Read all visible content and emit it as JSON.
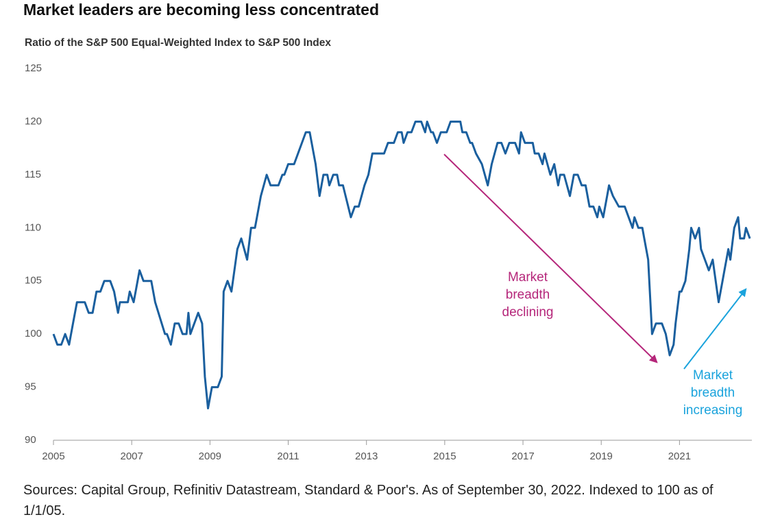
{
  "chart_data": {
    "type": "line",
    "title": "Market leaders are becoming less concentrated",
    "subtitle": "Ratio of the S&P 500 Equal-Weighted Index to S&P 500 Index",
    "source": "Sources: Capital Group, Refinitiv Datastream, Standard & Poor's. As of September 30, 2022. Indexed to 100 as of 1/1/05.",
    "annotations": [
      {
        "text": "Market breadth declining",
        "color": "#b5267a"
      },
      {
        "text": "Market breadth increasing",
        "color": "#1aa3dc"
      }
    ],
    "xlim": [
      2005,
      2022.85
    ],
    "xticks": [
      2005,
      2007,
      2009,
      2011,
      2013,
      2015,
      2017,
      2019,
      2021
    ],
    "ylim": [
      90,
      125
    ],
    "yticks": [
      90,
      95,
      100,
      105,
      110,
      115,
      120,
      125
    ],
    "grid": false,
    "series": [
      {
        "color": "#1a5f9e",
        "x": [
          2005.0,
          2005.1,
          2005.2,
          2005.3,
          2005.4,
          2005.5,
          2005.6,
          2005.8,
          2005.9,
          2006.0,
          2006.1,
          2006.2,
          2006.3,
          2006.45,
          2006.55,
          2006.65,
          2006.7,
          2006.9,
          2006.95,
          2007.05,
          2007.1,
          2007.2,
          2007.3,
          2007.5,
          2007.6,
          2007.85,
          2007.9,
          2008.0,
          2008.1,
          2008.2,
          2008.3,
          2008.4,
          2008.45,
          2008.5,
          2008.7,
          2008.8,
          2008.87,
          2008.95,
          2009.05,
          2009.2,
          2009.3,
          2009.35,
          2009.45,
          2009.55,
          2009.7,
          2009.8,
          2009.95,
          2010.05,
          2010.15,
          2010.2,
          2010.3,
          2010.45,
          2010.55,
          2010.75,
          2010.85,
          2010.9,
          2011.0,
          2011.15,
          2011.35,
          2011.45,
          2011.55,
          2011.65,
          2011.7,
          2011.8,
          2011.9,
          2012.0,
          2012.05,
          2012.15,
          2012.25,
          2012.3,
          2012.4,
          2012.6,
          2012.7,
          2012.8,
          2012.95,
          2013.05,
          2013.15,
          2013.45,
          2013.55,
          2013.7,
          2013.8,
          2013.9,
          2013.95,
          2014.05,
          2014.15,
          2014.25,
          2014.4,
          2014.5,
          2014.55,
          2014.65,
          2014.7,
          2014.8,
          2014.9,
          2015.05,
          2015.15,
          2015.4,
          2015.45,
          2015.55,
          2015.65,
          2015.7,
          2015.8,
          2015.95,
          2016.1,
          2016.2,
          2016.35,
          2016.45,
          2016.55,
          2016.65,
          2016.8,
          2016.9,
          2016.95,
          2017.05,
          2017.25,
          2017.3,
          2017.4,
          2017.5,
          2017.55,
          2017.7,
          2017.8,
          2017.9,
          2017.95,
          2018.05,
          2018.2,
          2018.3,
          2018.4,
          2018.5,
          2018.6,
          2018.7,
          2018.8,
          2018.9,
          2018.95,
          2019.05,
          2019.15,
          2019.2,
          2019.3,
          2019.45,
          2019.6,
          2019.7,
          2019.8,
          2019.85,
          2019.95,
          2020.05,
          2020.1,
          2020.2,
          2020.3,
          2020.4,
          2020.55,
          2020.65,
          2020.75,
          2020.85,
          2020.9,
          2021.0,
          2021.05,
          2021.15,
          2021.25,
          2021.3,
          2021.4,
          2021.5,
          2021.55,
          2021.75,
          2021.85,
          2022.0,
          2022.1,
          2022.15,
          2022.25,
          2022.3,
          2022.4,
          2022.5,
          2022.55,
          2022.65,
          2022.7,
          2022.8
        ],
        "values": [
          100,
          99,
          99,
          100,
          99,
          101,
          103,
          103,
          102,
          102,
          104,
          104,
          105,
          105,
          104,
          102,
          103,
          103,
          104,
          103,
          104,
          106,
          105,
          105,
          103,
          100,
          100,
          99,
          101,
          101,
          100,
          100,
          102,
          100,
          102,
          101,
          96,
          93,
          95,
          95,
          96,
          104,
          105,
          104,
          108,
          109,
          107,
          110,
          110,
          111,
          113,
          115,
          114,
          114,
          115,
          115,
          116,
          116,
          118,
          119,
          119,
          117,
          116,
          113,
          115,
          115,
          114,
          115,
          115,
          114,
          114,
          111,
          112,
          112,
          114,
          115,
          117,
          117,
          118,
          118,
          119,
          119,
          118,
          119,
          119,
          120,
          120,
          119,
          120,
          119,
          119,
          118,
          119,
          119,
          120,
          120,
          119,
          119,
          118,
          118,
          117,
          116,
          114,
          116,
          118,
          118,
          117,
          118,
          118,
          117,
          119,
          118,
          118,
          117,
          117,
          116,
          117,
          115,
          116,
          114,
          115,
          115,
          113,
          115,
          115,
          114,
          114,
          112,
          112,
          111,
          112,
          111,
          113,
          114,
          113,
          112,
          112,
          111,
          110,
          111,
          110,
          110,
          109,
          107,
          100,
          101,
          101,
          100,
          98,
          99,
          101,
          104,
          104,
          105,
          108,
          110,
          109,
          110,
          108,
          106,
          107,
          103,
          105,
          106,
          108,
          107,
          110,
          111,
          109,
          109,
          110,
          109
        ]
      }
    ]
  }
}
